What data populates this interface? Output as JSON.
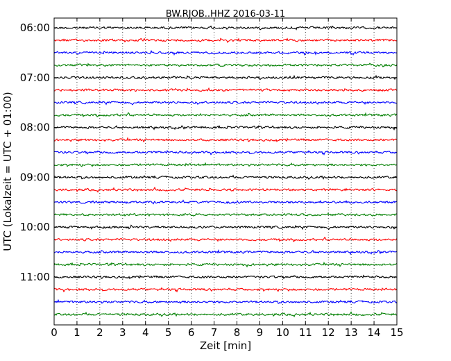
{
  "chart_data": {
    "type": "line",
    "title": "BW.RJOB..HHZ 2016-03-11",
    "xlabel": "Zeit  [min]",
    "ylabel": "UTC (Lokalzeit = UTC + 01:00)",
    "xlim": [
      0,
      15
    ],
    "x_ticks": [
      0,
      1,
      2,
      3,
      4,
      5,
      6,
      7,
      8,
      9,
      10,
      11,
      12,
      13,
      14,
      15
    ],
    "y_tick_labels": [
      "06:00",
      "07:00",
      "08:00",
      "09:00",
      "10:00",
      "11:00"
    ],
    "grid": "vertical dotted",
    "trace_interval_minutes": 15,
    "trace_colors": [
      "#000000",
      "#ff0000",
      "#0000ff",
      "#007f00"
    ],
    "traces": [
      {
        "start": "06:00",
        "color": "#000000"
      },
      {
        "start": "06:15",
        "color": "#ff0000"
      },
      {
        "start": "06:30",
        "color": "#0000ff"
      },
      {
        "start": "06:45",
        "color": "#007f00"
      },
      {
        "start": "07:00",
        "color": "#000000"
      },
      {
        "start": "07:15",
        "color": "#ff0000"
      },
      {
        "start": "07:30",
        "color": "#0000ff"
      },
      {
        "start": "07:45",
        "color": "#007f00"
      },
      {
        "start": "08:00",
        "color": "#000000"
      },
      {
        "start": "08:15",
        "color": "#ff0000"
      },
      {
        "start": "08:30",
        "color": "#0000ff"
      },
      {
        "start": "08:45",
        "color": "#007f00"
      },
      {
        "start": "09:00",
        "color": "#000000"
      },
      {
        "start": "09:15",
        "color": "#ff0000"
      },
      {
        "start": "09:30",
        "color": "#0000ff"
      },
      {
        "start": "09:45",
        "color": "#007f00"
      },
      {
        "start": "10:00",
        "color": "#000000"
      },
      {
        "start": "10:15",
        "color": "#ff0000"
      },
      {
        "start": "10:30",
        "color": "#0000ff"
      },
      {
        "start": "10:45",
        "color": "#007f00"
      },
      {
        "start": "11:00",
        "color": "#000000"
      },
      {
        "start": "11:15",
        "color": "#ff0000"
      },
      {
        "start": "11:30",
        "color": "#0000ff"
      },
      {
        "start": "11:45",
        "color": "#007f00"
      }
    ]
  }
}
